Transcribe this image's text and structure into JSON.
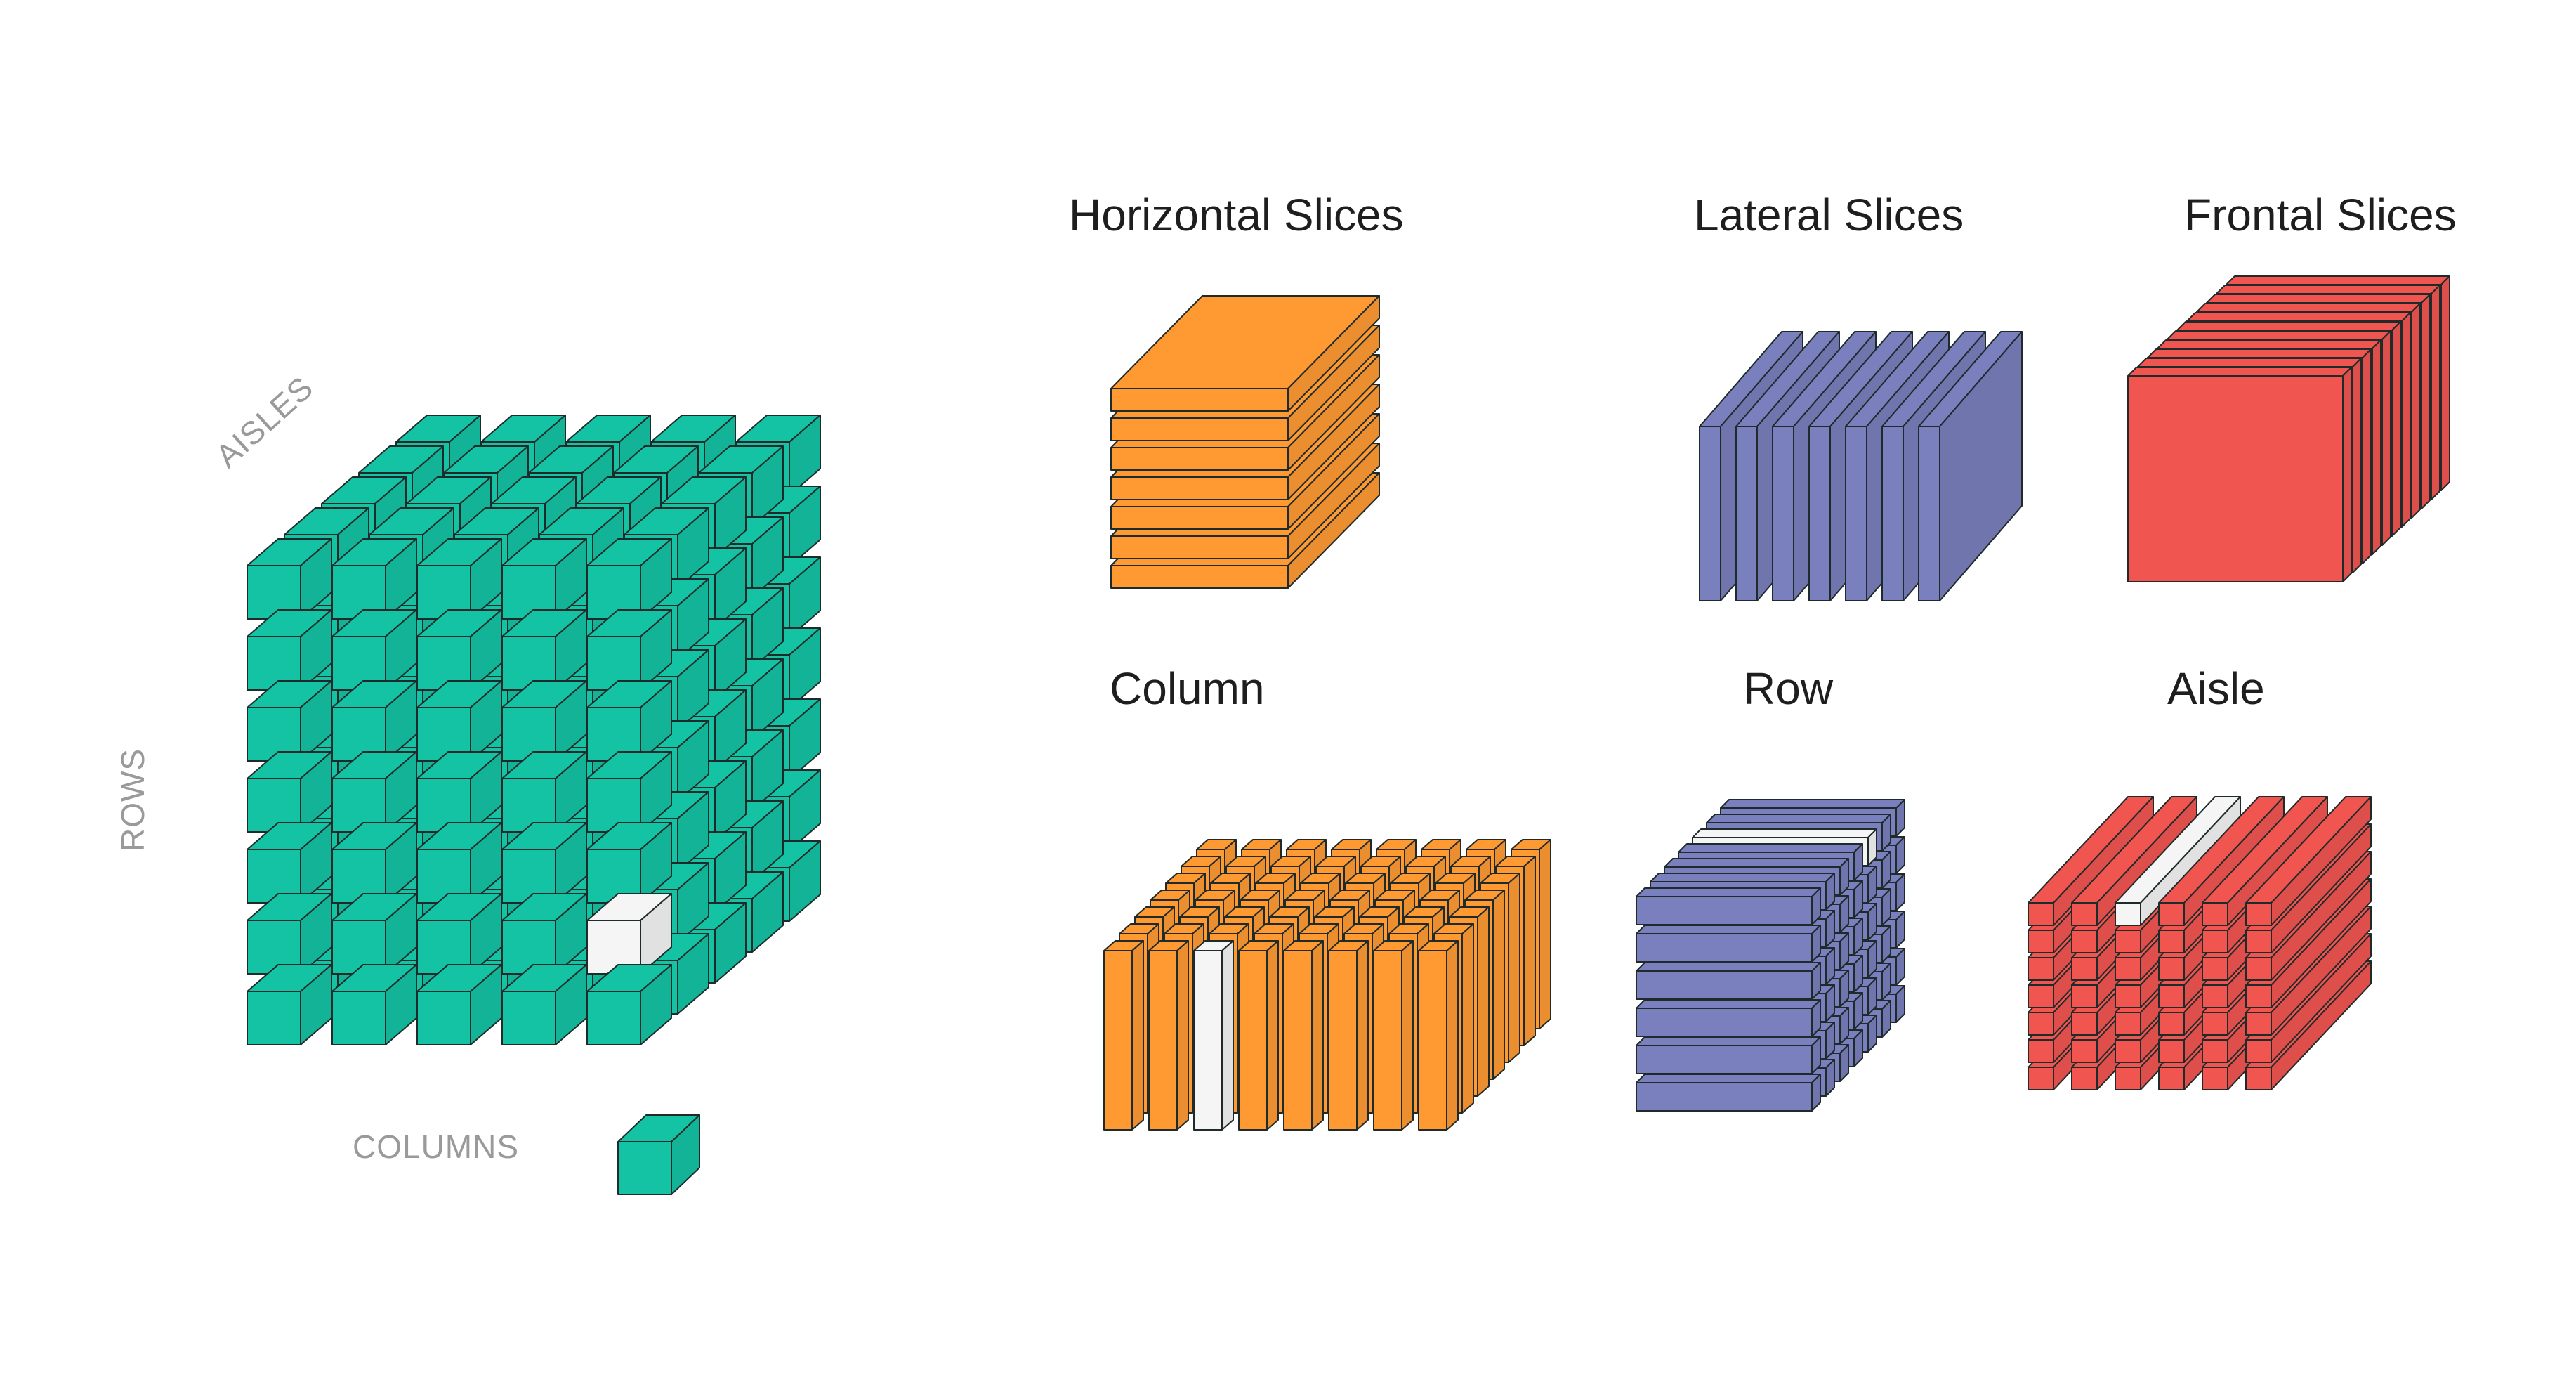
{
  "labels": {
    "aisles": "AISLES",
    "rows": "ROWS",
    "columns": "COLUMNS"
  },
  "titles": {
    "horizontal": "Horizontal Slices",
    "lateral": "Lateral Slices",
    "frontal": "Frontal Slices",
    "column": "Column",
    "row": "Row",
    "aisle": "Aisle"
  },
  "colors": {
    "teal": "#14c3a4",
    "orange": "#ff9a33",
    "purple": "#7a7fbd",
    "red": "#f15550",
    "white": "#f5f5f5",
    "stroke": "#1f2a2a"
  },
  "cube_grid": {
    "columns": 5,
    "rows": 7,
    "aisles": 5,
    "highlighted": {
      "column": 5,
      "row": 2,
      "aisle": 1
    }
  },
  "horizontal_slices": {
    "count": 7
  },
  "lateral_slices": {
    "count": 7
  },
  "frontal_slices": {
    "count": 11
  },
  "column_fiber": {
    "columns": 8,
    "aisles": 7,
    "highlighted_column": 3
  },
  "row_fiber": {
    "rows": 6,
    "aisles": 7,
    "highlighted_aisle": 5
  },
  "aisle_fiber": {
    "columns": 6,
    "rows": 7,
    "highlighted_column": 3
  }
}
